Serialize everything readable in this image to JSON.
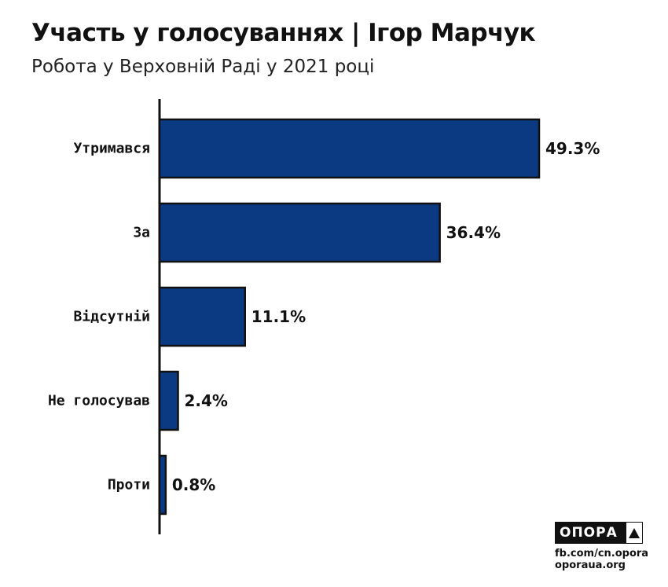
{
  "header": {
    "title": "Участь у голосуваннях | Ігор Марчук",
    "subtitle": "Робота у Верховній Раді у 2021 році"
  },
  "chart_data": {
    "type": "bar",
    "orientation": "horizontal",
    "categories": [
      "Утримався",
      "За",
      "Відсутній",
      "Не голосував",
      "Проти"
    ],
    "values": [
      49.3,
      36.4,
      11.1,
      2.4,
      0.8
    ],
    "value_labels": [
      "49.3%",
      "36.4%",
      "11.1%",
      "2.4%",
      "0.8%"
    ],
    "unit": "%",
    "bar_color": "#0b3a82",
    "bar_stroke": "#111111",
    "grid": false,
    "legend": "none"
  },
  "footer": {
    "logo_text": "ОПОРА",
    "logo_icon": "triangle-up-icon",
    "facebook": "fb.com/cn.opora",
    "website": "oporaua.org"
  }
}
